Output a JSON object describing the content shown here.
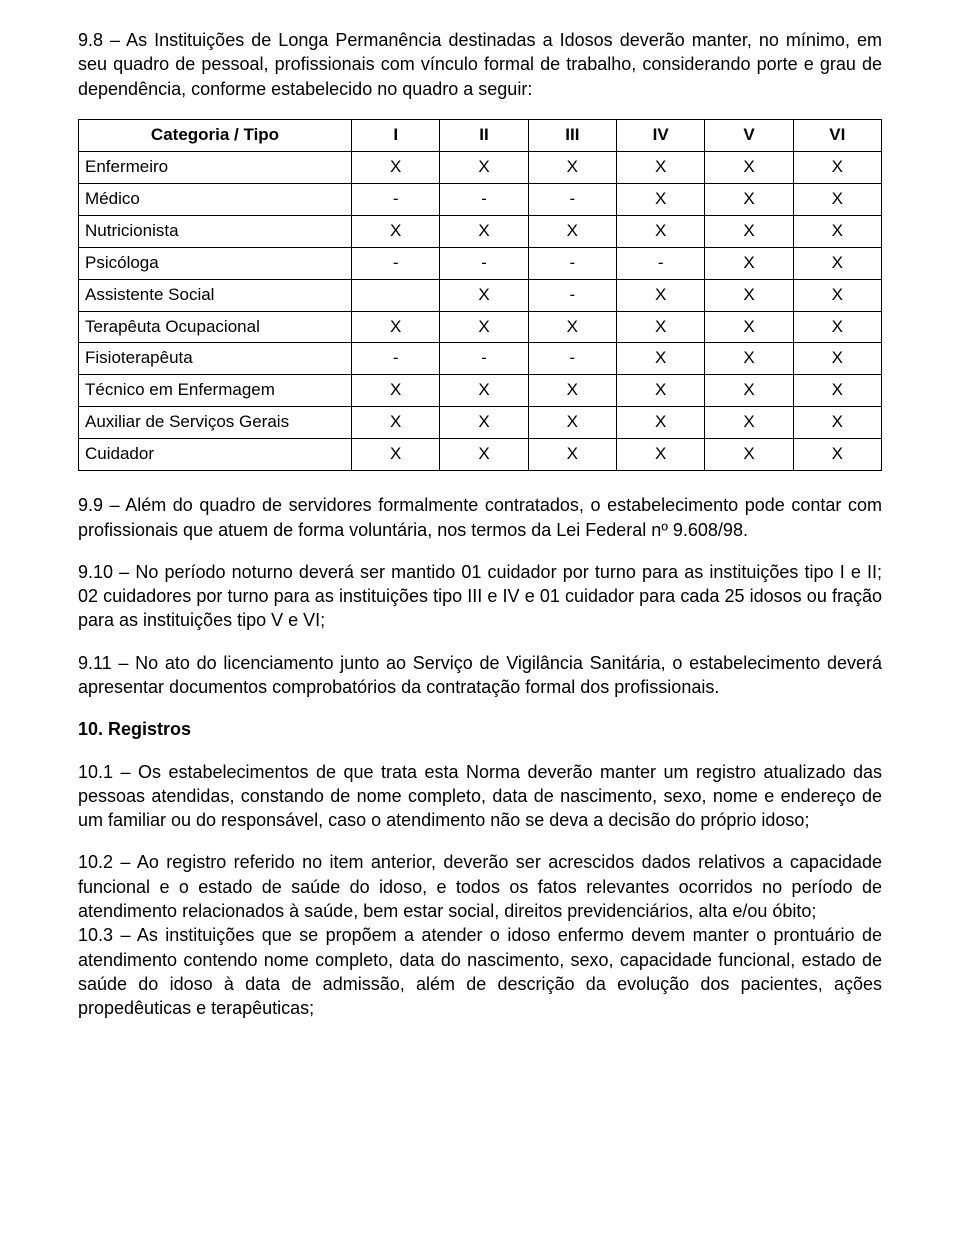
{
  "p_9_8": "9.8 – As Instituições de Longa Permanência destinadas a Idosos deverão manter, no mínimo, em seu quadro de pessoal, profissionais com vínculo formal de trabalho, considerando porte e grau de dependência, conforme estabelecido no quadro a seguir:",
  "table": {
    "headers": [
      "Categoria / Tipo",
      "I",
      "II",
      "III",
      "IV",
      "V",
      "VI"
    ],
    "rows": [
      {
        "cat": "Enfermeiro",
        "c": [
          "X",
          "X",
          "X",
          "X",
          "X",
          "X"
        ]
      },
      {
        "cat": "Médico",
        "c": [
          "-",
          "-",
          "-",
          "X",
          "X",
          "X"
        ]
      },
      {
        "cat": "Nutricionista",
        "c": [
          "X",
          "X",
          "X",
          "X",
          "X",
          "X"
        ]
      },
      {
        "cat": "Psicóloga",
        "c": [
          "-",
          "-",
          "-",
          "-",
          "X",
          "X"
        ]
      },
      {
        "cat": "Assistente Social",
        "c": [
          "",
          "X",
          "-",
          "X",
          "X",
          "X"
        ]
      },
      {
        "cat": "Terapêuta Ocupacional",
        "c": [
          "X",
          "X",
          "X",
          "X",
          "X",
          "X"
        ]
      },
      {
        "cat": "Fisioterapêuta",
        "c": [
          "-",
          "-",
          "-",
          "X",
          "X",
          "X"
        ]
      },
      {
        "cat": "Técnico em Enfermagem",
        "c": [
          "X",
          "X",
          "X",
          "X",
          "X",
          "X"
        ]
      },
      {
        "cat": "Auxiliar de Serviços Gerais",
        "c": [
          "X",
          "X",
          "X",
          "X",
          "X",
          "X"
        ]
      },
      {
        "cat": "Cuidador",
        "c": [
          "X",
          "X",
          "X",
          "X",
          "X",
          "X"
        ]
      }
    ],
    "col_widths": [
      "34%",
      "11%",
      "11%",
      "11%",
      "11%",
      "11%",
      "11%"
    ]
  },
  "p_9_9": "9.9 – Além do quadro de servidores formalmente contratados, o estabelecimento pode contar com profissionais que atuem de forma voluntária, nos termos da Lei Federal nº 9.608/98.",
  "p_9_10": "9.10 – No período noturno deverá ser mantido 01 cuidador por turno para as instituições tipo I e II; 02 cuidadores por turno para as instituições tipo III e IV e 01 cuidador para cada 25 idosos ou fração para as instituições tipo V e VI;",
  "p_9_11": "9.11 – No ato do licenciamento junto ao Serviço de Vigilância Sanitária, o estabelecimento deverá apresentar documentos comprobatórios da contratação formal dos profissionais.",
  "sec10_title": "10. Registros",
  "p_10_1": "10.1 – Os estabelecimentos de que trata esta Norma deverão manter um registro atualizado das pessoas atendidas, constando de nome completo, data de nascimento, sexo, nome e endereço de um familiar ou do responsável, caso o atendimento não se deva a decisão do próprio idoso;",
  "p_10_2": "10.2 – Ao registro referido no item anterior, deverão ser acrescidos dados relativos a capacidade funcional e o estado de saúde do idoso, e todos os fatos relevantes ocorridos no período de atendimento relacionados à saúde, bem estar social, direitos previdenciários, alta e/ou óbito;",
  "p_10_3": "10.3 – As instituições que se propõem a atender o idoso enfermo devem manter o prontuário de atendimento contendo nome completo, data do nascimento, sexo, capacidade funcional, estado de saúde do idoso à data de admissão, além de descrição da evolução dos pacientes, ações propedêuticas e terapêuticas;"
}
